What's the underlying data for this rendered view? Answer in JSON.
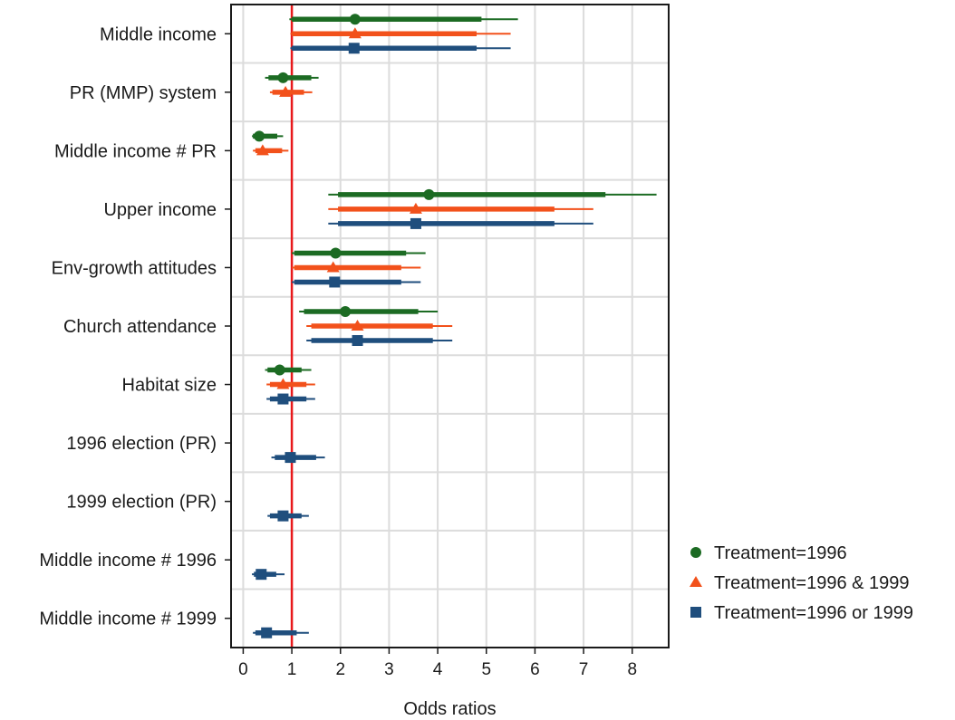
{
  "chart_data": {
    "type": "coefficient-plot",
    "xlabel": "Odds ratios",
    "xlim": [
      -0.25,
      8.75
    ],
    "xticks": [
      0,
      1,
      2,
      3,
      4,
      5,
      6,
      7,
      8
    ],
    "reference_line": {
      "x": 1,
      "color": "#e8191b"
    },
    "grid": true,
    "legend_position": "right",
    "categories": [
      "Middle income",
      "PR (MMP) system",
      "Middle income # PR",
      "Upper income",
      "Env-growth attitudes",
      "Church attendance",
      "Habitat size",
      "1996 election (PR)",
      "1999 election (PR)",
      "Middle income # 1996",
      "Middle income # 1999"
    ],
    "series": [
      {
        "name": "Treatment=1996",
        "color": "#1c6b23",
        "marker": "circle",
        "points": [
          {
            "category": "Middle income",
            "estimate": 2.3,
            "ci90": [
              1.0,
              4.9
            ],
            "ci95": [
              0.95,
              5.65
            ]
          },
          {
            "category": "PR (MMP) system",
            "estimate": 0.82,
            "ci90": [
              0.52,
              1.4
            ],
            "ci95": [
              0.45,
              1.55
            ]
          },
          {
            "category": "Middle income # PR",
            "estimate": 0.33,
            "ci90": [
              0.2,
              0.7
            ],
            "ci95": [
              0.18,
              0.82
            ]
          },
          {
            "category": "Upper income",
            "estimate": 3.82,
            "ci90": [
              1.95,
              7.45
            ],
            "ci95": [
              1.75,
              8.5
            ]
          },
          {
            "category": "Env-growth attitudes",
            "estimate": 1.9,
            "ci90": [
              1.05,
              3.35
            ],
            "ci95": [
              1.0,
              3.75
            ]
          },
          {
            "category": "Church attendance",
            "estimate": 2.1,
            "ci90": [
              1.25,
              3.6
            ],
            "ci95": [
              1.15,
              4.0
            ]
          },
          {
            "category": "Habitat size",
            "estimate": 0.75,
            "ci90": [
              0.5,
              1.2
            ],
            "ci95": [
              0.45,
              1.4
            ]
          }
        ]
      },
      {
        "name": "Treatment=1996 & 1999",
        "color": "#f2511b",
        "marker": "triangle",
        "points": [
          {
            "category": "Middle income",
            "estimate": 2.3,
            "ci90": [
              1.0,
              4.8
            ],
            "ci95": [
              0.97,
              5.5
            ]
          },
          {
            "category": "PR (MMP) system",
            "estimate": 0.87,
            "ci90": [
              0.6,
              1.25
            ],
            "ci95": [
              0.55,
              1.42
            ]
          },
          {
            "category": "Middle income # PR",
            "estimate": 0.4,
            "ci90": [
              0.25,
              0.8
            ],
            "ci95": [
              0.2,
              0.93
            ]
          },
          {
            "category": "Upper income",
            "estimate": 3.55,
            "ci90": [
              1.95,
              6.4
            ],
            "ci95": [
              1.75,
              7.2
            ]
          },
          {
            "category": "Env-growth attitudes",
            "estimate": 1.85,
            "ci90": [
              1.05,
              3.25
            ],
            "ci95": [
              1.0,
              3.65
            ]
          },
          {
            "category": "Church attendance",
            "estimate": 2.35,
            "ci90": [
              1.4,
              3.9
            ],
            "ci95": [
              1.3,
              4.3
            ]
          },
          {
            "category": "Habitat size",
            "estimate": 0.82,
            "ci90": [
              0.55,
              1.3
            ],
            "ci95": [
              0.48,
              1.48
            ]
          }
        ]
      },
      {
        "name": "Treatment=1996 or 1999",
        "color": "#1f4e7d",
        "marker": "square",
        "points": [
          {
            "category": "Middle income",
            "estimate": 2.28,
            "ci90": [
              1.0,
              4.8
            ],
            "ci95": [
              0.97,
              5.5
            ]
          },
          {
            "category": "Upper income",
            "estimate": 3.55,
            "ci90": [
              1.95,
              6.4
            ],
            "ci95": [
              1.75,
              7.2
            ]
          },
          {
            "category": "Env-growth attitudes",
            "estimate": 1.88,
            "ci90": [
              1.05,
              3.25
            ],
            "ci95": [
              1.0,
              3.65
            ]
          },
          {
            "category": "Church attendance",
            "estimate": 2.35,
            "ci90": [
              1.4,
              3.9
            ],
            "ci95": [
              1.3,
              4.3
            ]
          },
          {
            "category": "Habitat size",
            "estimate": 0.82,
            "ci90": [
              0.55,
              1.3
            ],
            "ci95": [
              0.48,
              1.48
            ]
          },
          {
            "category": "1996 election (PR)",
            "estimate": 0.97,
            "ci90": [
              0.65,
              1.5
            ],
            "ci95": [
              0.58,
              1.68
            ]
          },
          {
            "category": "1999 election (PR)",
            "estimate": 0.82,
            "ci90": [
              0.55,
              1.2
            ],
            "ci95": [
              0.5,
              1.35
            ]
          },
          {
            "category": "Middle income # 1996",
            "estimate": 0.37,
            "ci90": [
              0.22,
              0.68
            ],
            "ci95": [
              0.18,
              0.85
            ]
          },
          {
            "category": "Middle income # 1999",
            "estimate": 0.48,
            "ci90": [
              0.25,
              1.1
            ],
            "ci95": [
              0.2,
              1.35
            ]
          }
        ]
      }
    ]
  }
}
